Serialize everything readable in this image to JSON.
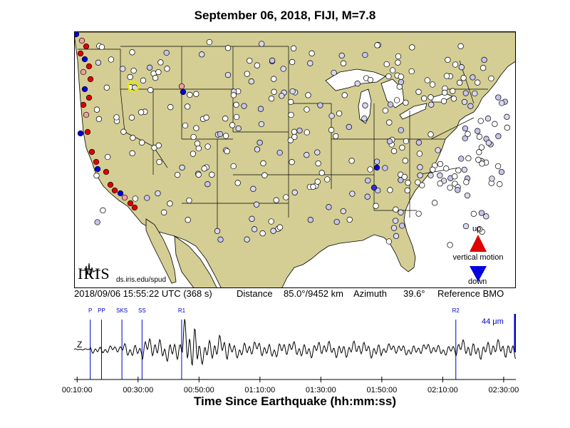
{
  "title": "September 06, 2018, FIJI, M=7.8",
  "info": {
    "datetime": "2018/09/06 15:55:22 UTC (368 s)",
    "distance_label": "Distance",
    "distance_value": "85.0°/9452 km",
    "azimuth_label": "Azimuth",
    "azimuth_value": "39.6°",
    "reference": "Reference BMO"
  },
  "legend": {
    "up": "up",
    "vertical_motion": "vertical motion",
    "down": "down",
    "up_color": "#e00000",
    "down_color": "#0000e0"
  },
  "logo": {
    "text": "IRIS",
    "credit": "ds.iris.edu/spud"
  },
  "colors": {
    "land": "#d4ce94",
    "water": "#ffffff",
    "trace": "#000000",
    "phase": "#0000cc"
  },
  "chart_data": {
    "type": "line",
    "component": "Z",
    "xlabel": "Time Since Earthquake (hh:mm:ss)",
    "x_ticks": [
      "00:10:00",
      "00:30:00",
      "00:50:00",
      "01:10:00",
      "01:30:00",
      "01:50:00",
      "02:10:00",
      "02:30:00"
    ],
    "x_tick_minutes": [
      10,
      30,
      50,
      70,
      90,
      110,
      130,
      150
    ],
    "xlim_minutes": [
      9,
      154
    ],
    "scale_bar": "44 μm",
    "phases": [
      {
        "name": "P",
        "minute": 14.3
      },
      {
        "name": "PP",
        "minute": 18.0
      },
      {
        "name": "SKS",
        "minute": 24.7
      },
      {
        "name": "SS",
        "minute": 31.3
      },
      {
        "name": "R1",
        "minute": 44.3
      },
      {
        "name": "R2",
        "minute": 134.3
      }
    ]
  }
}
